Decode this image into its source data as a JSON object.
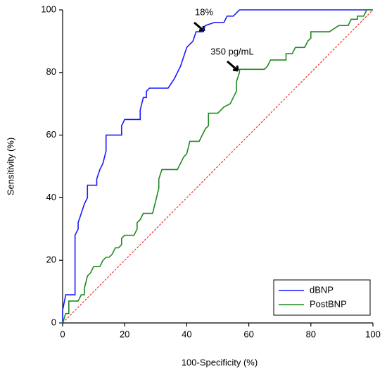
{
  "chart_data": {
    "type": "line",
    "xlabel": "100-Specificity (%)",
    "ylabel": "Sensitivity (%)",
    "xlim": [
      0,
      100
    ],
    "ylim": [
      0,
      100
    ],
    "xticks": [
      0,
      20,
      40,
      60,
      80,
      100
    ],
    "yticks": [
      0,
      20,
      40,
      60,
      80,
      100
    ],
    "annotations": [
      "18%",
      "350 pg/mL"
    ],
    "legend": "lower right",
    "series": [
      {
        "name": "dBNP",
        "color": "#1a1aff",
        "x": [
          0,
          0,
          1,
          4,
          4,
          5,
          5,
          6,
          7,
          8,
          8,
          11,
          11,
          12,
          13,
          14,
          14,
          19,
          19,
          20,
          25,
          25,
          26,
          27,
          27,
          28,
          34,
          36,
          38,
          40,
          41,
          42,
          43,
          45,
          46,
          49,
          52,
          53,
          55,
          56,
          57,
          100
        ],
        "values": [
          0,
          4,
          9,
          9,
          28,
          30,
          32,
          35,
          38,
          40,
          44,
          44,
          46,
          49,
          51,
          55,
          60,
          60,
          63,
          65,
          65,
          68,
          72,
          72,
          74,
          75,
          75,
          78,
          82,
          88,
          89,
          90,
          93,
          93,
          95,
          96,
          96,
          98,
          98,
          99,
          100,
          100
        ]
      },
      {
        "name": "PostBNP",
        "color": "#1e8a1e",
        "x": [
          0,
          1,
          2,
          2,
          5,
          6,
          7,
          7,
          8,
          9,
          10,
          12,
          13,
          14,
          15,
          16,
          17,
          18,
          19,
          19,
          20,
          23,
          24,
          24,
          25,
          26,
          29,
          30,
          31,
          31,
          32,
          37,
          38,
          39,
          40,
          41,
          44,
          45,
          46,
          47,
          47,
          50,
          52,
          54,
          55,
          56,
          56,
          57,
          57,
          65,
          66,
          67,
          72,
          72,
          74,
          75,
          78,
          79,
          80,
          80,
          86,
          89,
          92,
          93,
          95,
          95,
          97,
          98,
          100
        ],
        "values": [
          0,
          3,
          3,
          7,
          7,
          9,
          9,
          11,
          15,
          16,
          18,
          18,
          20,
          21,
          21,
          22,
          24,
          24,
          25,
          27,
          28,
          28,
          30,
          32,
          33,
          35,
          35,
          39,
          43,
          46,
          49,
          49,
          51,
          53,
          54,
          58,
          58,
          60,
          62,
          63,
          67,
          67,
          69,
          70,
          72,
          74,
          77,
          80,
          81,
          81,
          82,
          84,
          84,
          86,
          86,
          88,
          88,
          90,
          91,
          93,
          93,
          95,
          95,
          97,
          97,
          98,
          98,
          100,
          100
        ]
      }
    ]
  }
}
